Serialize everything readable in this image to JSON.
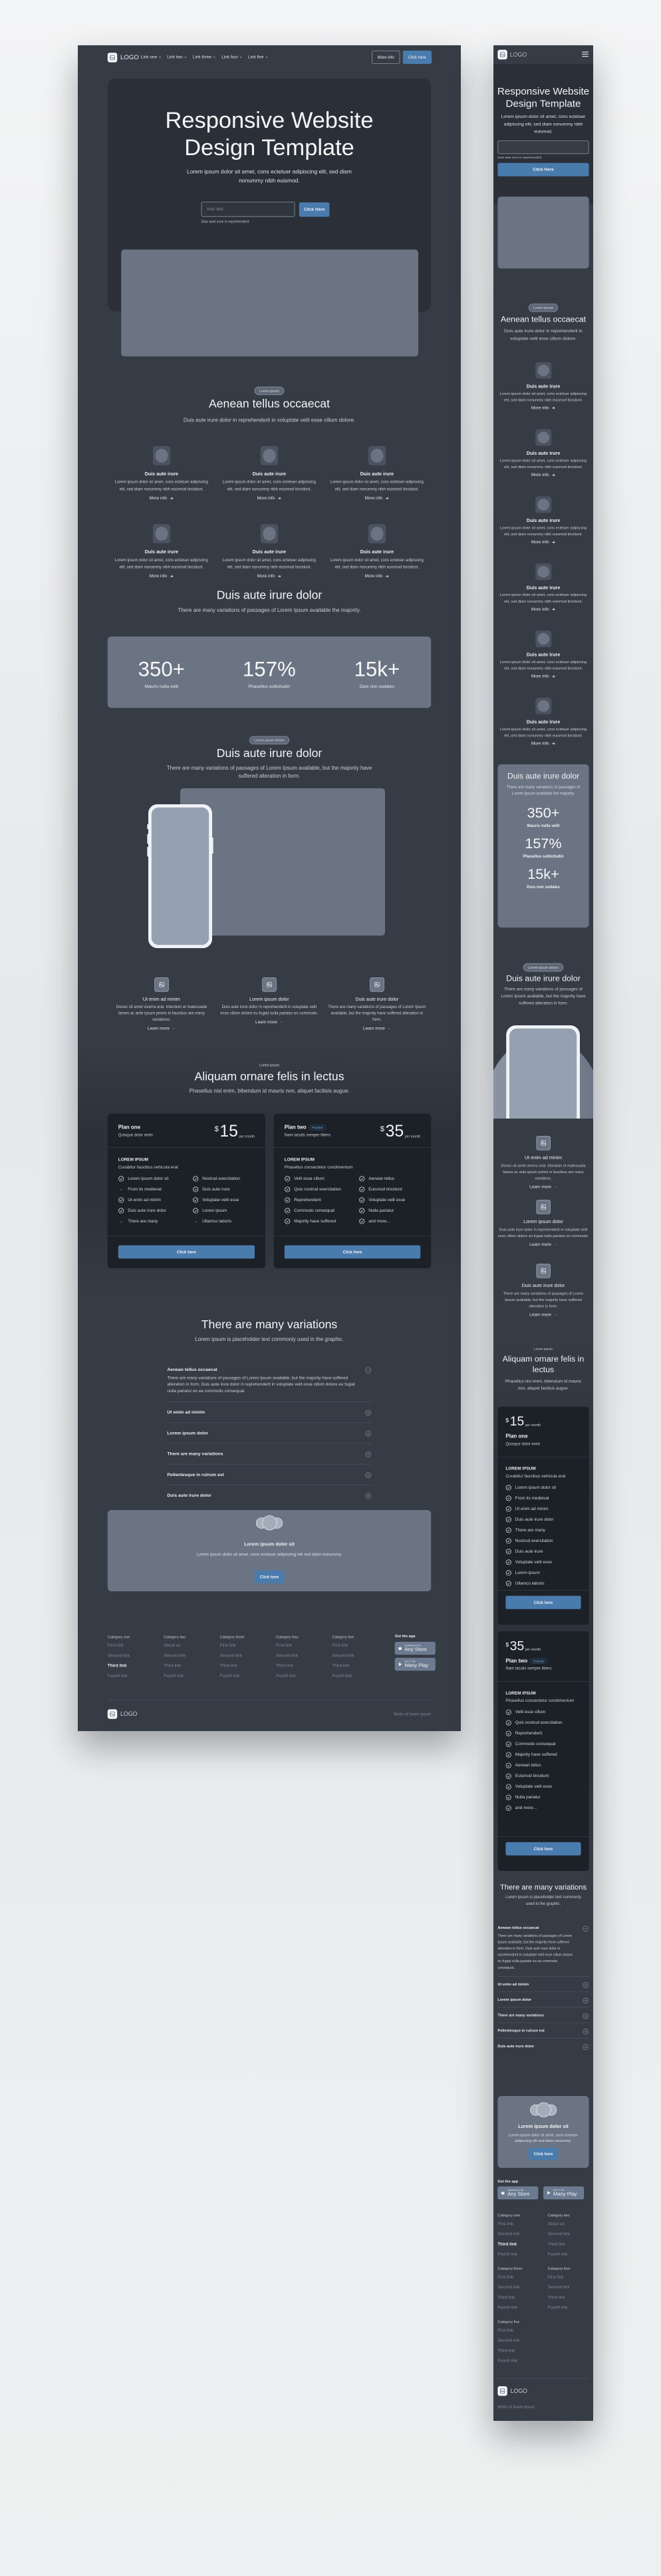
{
  "colors": {
    "background": "#363c46",
    "hero": "#2b3038",
    "card": "#1c2027",
    "accent": "#4a7bad",
    "placeholder": "#6b7483"
  },
  "nav": {
    "logo": "LOGO",
    "links": [
      "Link one",
      "Link two",
      "Link three",
      "Link four",
      "Link five"
    ],
    "more_info": "More info",
    "click_here": "Click here",
    "menu_icon": "hamburger-icon"
  },
  "hero": {
    "title": "Responsive Website Design Template",
    "subtitle": "Lorem ipsum dolor sit amet, cons ectetuer adipiscing elit, sed diam nonummy nibh euismod.",
    "input_placeholder": "Your text",
    "input_value": "",
    "helper": "Duis aute irure in reprehenderit",
    "button": "Click Here"
  },
  "features": {
    "badge": "Lorem ipsum",
    "title": "Aenean tellus occaecat",
    "subtitle": "Duis aute irure dolor in reprehenderit in voluptate velit esse cillum dolore.",
    "items": [
      {
        "title": "Duis aute irure",
        "text": "Lorem ipsum dolor sit amet, cons ectetuer adipiscing elit, sed diam nonummy nibh euismod tincidunt.",
        "link": "More info"
      },
      {
        "title": "Duis aute irure",
        "text": "Lorem ipsum dolor sit amet, cons ectetuer adipiscing elit, sed diam nonummy nibh euismod tincidunt.",
        "link": "More info"
      },
      {
        "title": "Duis aute irure",
        "text": "Lorem ipsum dolor sit amet, cons ectetuer adipiscing elit, sed diam nonummy nibh euismod tincidunt.",
        "link": "More info"
      },
      {
        "title": "Duis aute irure",
        "text": "Lorem ipsum dolor sit amet, cons ectetuer adipiscing elit, sed diam nonummy nibh euismod tincidunt.",
        "link": "More info"
      },
      {
        "title": "Duis aute irure",
        "text": "Lorem ipsum dolor sit amet, cons ectetuer adipiscing elit, sed diam nonummy nibh euismod tincidunt.",
        "link": "More info"
      },
      {
        "title": "Duis aute irure",
        "text": "Lorem ipsum dolor sit amet, cons ectetuer adipiscing elit, sed diam nonummy nibh euismod tincidunt.",
        "link": "More info"
      }
    ]
  },
  "stats": {
    "title": "Duis aute irure dolor",
    "subtitle": "There are many variations of passages of Lorem Ipsum available the majority.",
    "items": [
      {
        "value": "350+",
        "label": "Mauris nulla velit"
      },
      {
        "value": "157%",
        "label": "Phasellus sollicitudin"
      },
      {
        "value": "15k+",
        "label": "Duis non sodales"
      }
    ]
  },
  "showcase": {
    "badge": "Lorem ipsum dolors",
    "title": "Duis aute irure dolor",
    "subtitle": "There are many variations of passages of Lorem Ipsum available, but the majority have suffered alteration in form.",
    "items": [
      {
        "title": "Ut enim ad minim",
        "text": "Donec sit amet viverra erat. Interdum et malesuada fames ac ante ipsum primis in faucibus are many variations.",
        "link": "Learn more"
      },
      {
        "title": "Lorem ipsum dolor",
        "text": "Duis aute irure dolor in reprehenderit in voluptate velit esse cillum dolore eu fugiat nulla pariatur ex commodo.",
        "link": "Learn more"
      },
      {
        "title": "Duis aute irure dolor",
        "text": "There are many variations of passages of Lorem Ipsum available, but the majority have suffered alteration in form.",
        "link": "Learn more"
      }
    ]
  },
  "pricing": {
    "badge": "Lorem ipsum",
    "title": "Aliquam ornare felis in lectus",
    "subtitle": "Phasellus nisl enim, bibendum id mauris non, aliquet facilisis augue.",
    "plans": [
      {
        "name": "Plan one",
        "tag": "",
        "desc": "Quisque dolor enim",
        "currency": "$",
        "price": "15",
        "period": "per month",
        "section_title": "LOREM IPSUM",
        "section_desc": "Curabitur faucibus vehicula erat",
        "button": "Click here",
        "features": [
          {
            "label": "Lorem ipsum dolor sit",
            "icon": "check-circle"
          },
          {
            "label": "From its medieval",
            "icon": "check"
          },
          {
            "label": "Ut enim ad minim",
            "icon": "check-circle"
          },
          {
            "label": "Duis aute irure dolor",
            "icon": "check-circle"
          },
          {
            "label": "There are many",
            "icon": "check"
          },
          {
            "label": "Nostrud exercitation",
            "icon": "check-circle"
          },
          {
            "label": "Duis aute irure",
            "icon": "check-circle"
          },
          {
            "label": "Voluptate velit esse",
            "icon": "check-circle"
          },
          {
            "label": "Lorem ipsum",
            "icon": "check-circle"
          },
          {
            "label": "Ullamco laboris",
            "icon": "check"
          }
        ]
      },
      {
        "name": "Plan two",
        "tag": "Popular",
        "desc": "Nam iaculis semper libero",
        "currency": "$",
        "price": "35",
        "period": "per month",
        "section_title": "LOREM IPSUM",
        "section_desc": "Phasellus consectetur condimentum",
        "button": "Click here",
        "features": [
          {
            "label": "Velit esse cillum",
            "icon": "check-circle"
          },
          {
            "label": "Quis nostrud exercitation",
            "icon": "check-circle"
          },
          {
            "label": "Reprehenderit",
            "icon": "check-circle"
          },
          {
            "label": "Commodo consequat",
            "icon": "check-circle"
          },
          {
            "label": "Majority have suffered",
            "icon": "check-circle"
          },
          {
            "label": "Aenean tellus",
            "icon": "check-circle"
          },
          {
            "label": "Euismod tincidunt",
            "icon": "check-circle"
          },
          {
            "label": "Voluptate velit esse",
            "icon": "check-circle"
          },
          {
            "label": "Nulla pariatur",
            "icon": "check-circle"
          },
          {
            "label": "and more...",
            "icon": "check-circle"
          }
        ]
      }
    ]
  },
  "faq": {
    "title": "There are many variations",
    "subtitle": "Lorem ipsum is placeholder text commonly used in the graphic.",
    "items": [
      {
        "q": "Aenean tellus occaecat",
        "a": "There are many variations of passages of Lorem Ipsum available, but the majority have suffered alteration in form. Duis aute irure dolor in reprehenderit in voluptate velit esse cillum dolore eu fugiat nulla pariatur ex ea commodo consequat.",
        "expanded": true
      },
      {
        "q": "Ut enim ad minim",
        "expanded": false
      },
      {
        "q": "Lorem ipsum dolor",
        "expanded": false
      },
      {
        "q": "There are many variations",
        "expanded": false
      },
      {
        "q": "Pellentesque in rutrum est",
        "expanded": false
      },
      {
        "q": "Duis aute irure dolor",
        "expanded": false
      }
    ]
  },
  "cta": {
    "title": "Lorem ipsum dolor sit",
    "text": "Lorem ipsum dolor sit amet, cons ectetuer adipiscing elit sed diam nonummy.",
    "button": "Click here"
  },
  "footer": {
    "columns": [
      {
        "title": "Category one",
        "links": [
          "First link",
          "Second link",
          "Third link",
          "Fourth link"
        ],
        "active": 2
      },
      {
        "title": "Category two",
        "links": [
          "About us",
          "Second link",
          "Third link",
          "Fourth link"
        ],
        "active": -1
      },
      {
        "title": "Category three",
        "links": [
          "First link",
          "Second link",
          "Third link",
          "Fourth link"
        ],
        "active": -1
      },
      {
        "title": "Category four",
        "links": [
          "First link",
          "Second link",
          "Third link",
          "Fourth link"
        ],
        "active": -1
      },
      {
        "title": "Category five",
        "links": [
          "First link",
          "Second link",
          "Third link",
          "Fourth link"
        ],
        "active": -1
      }
    ],
    "app_title": "Get the app",
    "stores": [
      {
        "small": "Download on the",
        "name": "Any Store",
        "icon": "apple-icon"
      },
      {
        "small": "GET IT ON",
        "name": "Many Play",
        "icon": "play-icon"
      }
    ],
    "logo": "LOGO",
    "motto": "Motto of lorem ipsum"
  }
}
